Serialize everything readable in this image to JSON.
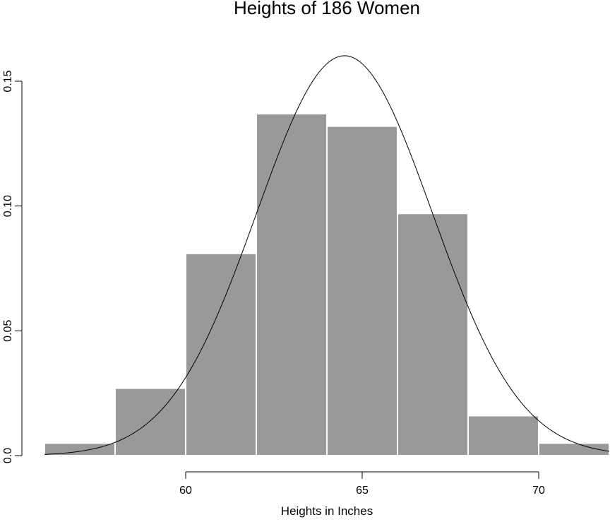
{
  "chart_data": {
    "type": "bar",
    "title": "Heights of 186 Women",
    "subtitle": "",
    "xlabel": "Heights in Inches",
    "ylabel": "",
    "bins": [
      {
        "x0": 56,
        "x1": 58,
        "density": 0.005
      },
      {
        "x0": 58,
        "x1": 60,
        "density": 0.027
      },
      {
        "x0": 60,
        "x1": 62,
        "density": 0.081
      },
      {
        "x0": 62,
        "x1": 64,
        "density": 0.137
      },
      {
        "x0": 64,
        "x1": 66,
        "density": 0.132
      },
      {
        "x0": 66,
        "x1": 68,
        "density": 0.097
      },
      {
        "x0": 68,
        "x1": 70,
        "density": 0.016
      },
      {
        "x0": 70,
        "x1": 72,
        "density": 0.005
      }
    ],
    "xlim": [
      56,
      72
    ],
    "ylim": [
      0,
      0.15
    ],
    "x_ticks": [
      60,
      65,
      70
    ],
    "x_tick_labels": [
      "60",
      "65",
      "70"
    ],
    "y_ticks": [
      0.0,
      0.05,
      0.1,
      0.15
    ],
    "y_tick_labels": [
      "0.0",
      "0.05",
      "0.10",
      "0.15"
    ],
    "overlay_curve": {
      "type": "normal-density",
      "mean": 64.5,
      "sd": 2.49
    },
    "grid": false,
    "colors": {
      "bar_fill": "#999999",
      "bar_border": "#ffffff",
      "curve": "#000000",
      "axis": "#000000"
    }
  }
}
